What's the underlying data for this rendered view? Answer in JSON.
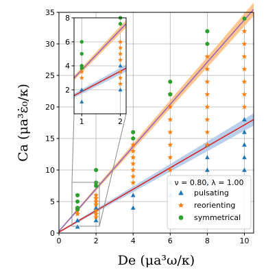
{
  "chart_data": {
    "type": "scatter",
    "xlabel": "De (μa³ω/κ)",
    "ylabel": "Ca (μa³ε̇₀/κ)",
    "xlim": [
      0,
      10.5
    ],
    "ylim": [
      0,
      35
    ],
    "x_ticks": [
      0,
      2,
      4,
      6,
      8,
      10
    ],
    "y_ticks": [
      0,
      5,
      10,
      15,
      20,
      25,
      30,
      35
    ],
    "grid": true,
    "legend_title": "ν = 0.80, λ = 1.00",
    "legend_position": "lower-right",
    "series": [
      {
        "name": "pulsating",
        "marker": "triangle",
        "color": "#1f77b4",
        "points": [
          [
            1,
            1
          ],
          [
            1,
            2
          ],
          [
            2,
            2
          ],
          [
            2,
            4
          ],
          [
            4,
            4
          ],
          [
            4,
            6
          ],
          [
            6,
            6
          ],
          [
            6,
            8
          ],
          [
            8,
            8
          ],
          [
            8,
            10
          ],
          [
            8,
            12
          ],
          [
            8,
            14
          ],
          [
            10,
            10
          ],
          [
            10,
            12
          ],
          [
            10,
            14
          ],
          [
            10,
            16
          ],
          [
            10,
            18
          ]
        ]
      },
      {
        "name": "reorienting",
        "marker": "star",
        "color": "#ff7f0e",
        "points": [
          [
            1,
            3
          ],
          [
            1,
            3.5
          ],
          [
            2,
            2.5
          ],
          [
            2,
            3
          ],
          [
            2,
            3.5
          ],
          [
            2,
            4.5
          ],
          [
            2,
            5
          ],
          [
            2,
            5.5
          ],
          [
            2,
            6
          ],
          [
            4,
            8
          ],
          [
            4,
            9
          ],
          [
            4,
            10
          ],
          [
            4,
            11
          ],
          [
            4,
            12
          ],
          [
            4,
            13
          ],
          [
            4,
            14
          ],
          [
            6,
            10
          ],
          [
            6,
            12
          ],
          [
            6,
            14
          ],
          [
            6,
            16
          ],
          [
            6,
            18
          ],
          [
            6,
            20
          ],
          [
            6,
            22
          ],
          [
            8,
            14
          ],
          [
            8,
            16
          ],
          [
            8,
            18
          ],
          [
            8,
            20
          ],
          [
            8,
            22
          ],
          [
            8,
            24
          ],
          [
            8,
            26
          ],
          [
            8,
            28
          ],
          [
            10,
            20
          ],
          [
            10,
            22
          ],
          [
            10,
            24
          ],
          [
            10,
            26
          ],
          [
            10,
            28
          ],
          [
            10,
            30
          ],
          [
            10,
            32
          ]
        ]
      },
      {
        "name": "symmetrical",
        "marker": "circle",
        "color": "#2ca02c",
        "points": [
          [
            1,
            3.8
          ],
          [
            1,
            4
          ],
          [
            1,
            5
          ],
          [
            1,
            6
          ],
          [
            2,
            7.5
          ],
          [
            2,
            8
          ],
          [
            2,
            10
          ],
          [
            4,
            15
          ],
          [
            4,
            16
          ],
          [
            6,
            22
          ],
          [
            6,
            24
          ],
          [
            8,
            30
          ],
          [
            8,
            32
          ],
          [
            10,
            34
          ]
        ]
      }
    ],
    "fit_lines": [
      {
        "color": "#9467bd",
        "band_color": "#ffbb78",
        "slope": 3.35,
        "intercept": 0.3,
        "band": 0.6
      },
      {
        "color": "#d62728",
        "band_color": "#aec7e8",
        "slope": 1.7,
        "intercept": 0.15,
        "band": 0.55
      }
    ],
    "inset": {
      "xlim": [
        0.8,
        2.15
      ],
      "ylim": [
        0,
        8
      ],
      "x_ticks": [
        1,
        2
      ],
      "y_ticks": [
        2,
        4,
        6,
        8
      ]
    }
  }
}
